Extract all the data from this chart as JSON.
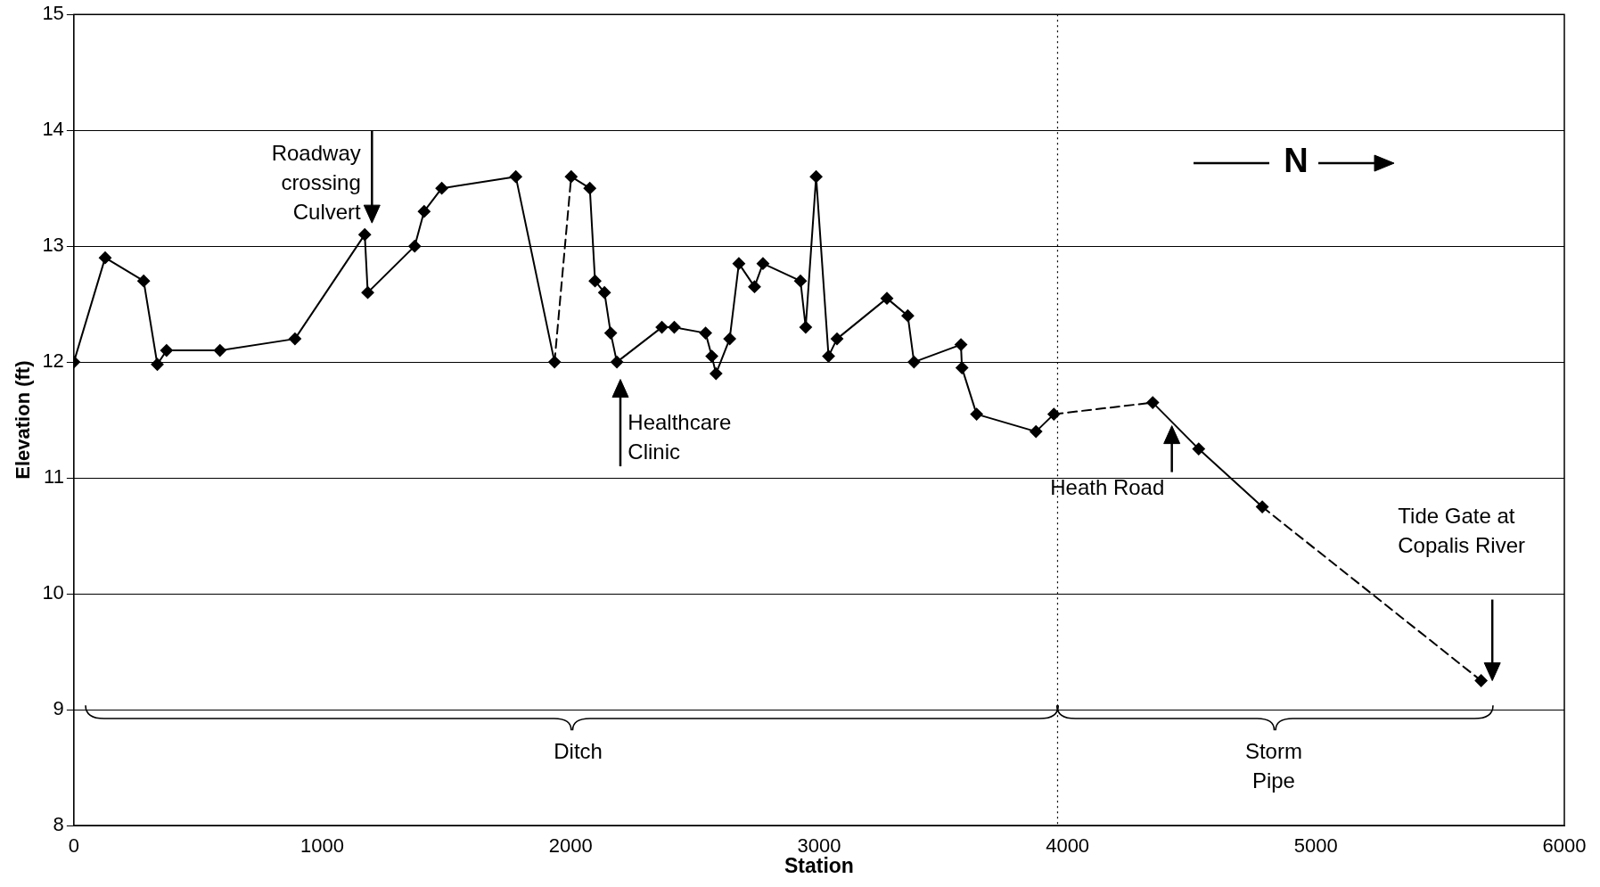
{
  "chart_data": {
    "type": "line",
    "xlabel": "Station",
    "ylabel": "Elevation (ft)",
    "xlim": [
      0,
      6000
    ],
    "xticks": [
      0,
      1000,
      2000,
      3000,
      4000,
      5000,
      6000
    ],
    "ylim": [
      8,
      15
    ],
    "yticks": [
      8,
      9,
      10,
      11,
      12,
      13,
      14,
      15
    ],
    "grid": "y",
    "legend": false,
    "marker": "diamond",
    "series": [
      {
        "color": "#000000",
        "x": [
          0,
          126,
          281,
          336,
          373,
          588,
          890,
          1171,
          1183,
          1372,
          1410,
          1481,
          1779,
          1935
        ],
        "values": [
          12.0,
          12.9,
          12.7,
          11.98,
          12.1,
          12.1,
          12.2,
          13.1,
          12.6,
          13.0,
          13.3,
          13.5,
          13.6,
          12.0
        ]
      },
      {
        "color": "#000000",
        "x": [
          2002,
          2077,
          2098,
          2136,
          2161,
          2186,
          2367,
          2417,
          2543,
          2568,
          2585,
          2640,
          2677,
          2740,
          2774,
          2925,
          2946,
          2988,
          3038,
          3072,
          3273,
          3357,
          3382,
          3571,
          3575,
          3634,
          3873,
          3945
        ],
        "values": [
          13.6,
          13.5,
          12.7,
          12.6,
          12.25,
          12.0,
          12.3,
          12.3,
          12.25,
          12.05,
          11.9,
          12.2,
          12.85,
          12.65,
          12.85,
          12.7,
          12.3,
          13.6,
          12.05,
          12.2,
          12.55,
          12.4,
          12.0,
          12.15,
          11.95,
          11.55,
          11.4,
          11.55
        ]
      },
      {
        "color": "#000000",
        "x": [
          4343,
          4528,
          4784
        ],
        "values": [
          11.65,
          11.25,
          10.75
        ]
      },
      {
        "color": "#000000",
        "x": [
          5665
        ],
        "values": [
          9.25
        ]
      },
      {
        "color": "#000000",
        "line_style": "dashed",
        "marker": "none",
        "x": [
          1935,
          2002
        ],
        "values": [
          12.0,
          13.6
        ]
      },
      {
        "color": "#000000",
        "line_style": "dashed",
        "marker": "none",
        "x": [
          3945,
          4343
        ],
        "values": [
          11.55,
          11.65
        ]
      },
      {
        "color": "#000000",
        "line_style": "dashed",
        "marker": "none",
        "x": [
          4784,
          5665
        ],
        "values": [
          10.75,
          9.25
        ]
      }
    ],
    "ref_lines": [
      {
        "axis": "x",
        "value": 3960,
        "color": "#000000",
        "line_style": "dotted"
      }
    ],
    "annotations": [
      "Roadway crossing Culvert",
      "Healthcare Clinic",
      "Heath Road",
      "Tide Gate at Copalis River",
      "N",
      "Ditch",
      "Storm Pipe"
    ]
  }
}
